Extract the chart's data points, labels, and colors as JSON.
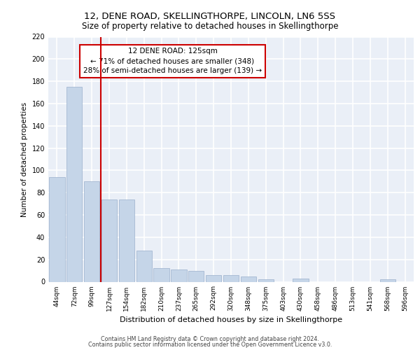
{
  "title": "12, DENE ROAD, SKELLINGTHORPE, LINCOLN, LN6 5SS",
  "subtitle": "Size of property relative to detached houses in Skellingthorpe",
  "xlabel": "Distribution of detached houses by size in Skellingthorpe",
  "ylabel": "Number of detached properties",
  "categories": [
    "44sqm",
    "72sqm",
    "99sqm",
    "127sqm",
    "154sqm",
    "182sqm",
    "210sqm",
    "237sqm",
    "265sqm",
    "292sqm",
    "320sqm",
    "348sqm",
    "375sqm",
    "403sqm",
    "430sqm",
    "458sqm",
    "486sqm",
    "513sqm",
    "541sqm",
    "568sqm",
    "596sqm"
  ],
  "values": [
    94,
    175,
    90,
    74,
    74,
    28,
    12,
    11,
    10,
    6,
    6,
    5,
    2,
    0,
    3,
    0,
    0,
    0,
    0,
    2,
    0
  ],
  "bar_color": "#c5d5e8",
  "bar_edgecolor": "#9ab0cc",
  "vline_x": 2.5,
  "vline_color": "#cc0000",
  "annotation_text": "12 DENE ROAD: 125sqm\n← 71% of detached houses are smaller (348)\n28% of semi-detached houses are larger (139) →",
  "annotation_box_color": "#ffffff",
  "annotation_box_edgecolor": "#cc0000",
  "ylim": [
    0,
    220
  ],
  "yticks": [
    0,
    20,
    40,
    60,
    80,
    100,
    120,
    140,
    160,
    180,
    200,
    220
  ],
  "footer1": "Contains HM Land Registry data © Crown copyright and database right 2024.",
  "footer2": "Contains public sector information licensed under the Open Government Licence v3.0.",
  "bg_color": "#eaeff7",
  "grid_color": "#ffffff",
  "title_fontsize": 9.5,
  "subtitle_fontsize": 8.5
}
